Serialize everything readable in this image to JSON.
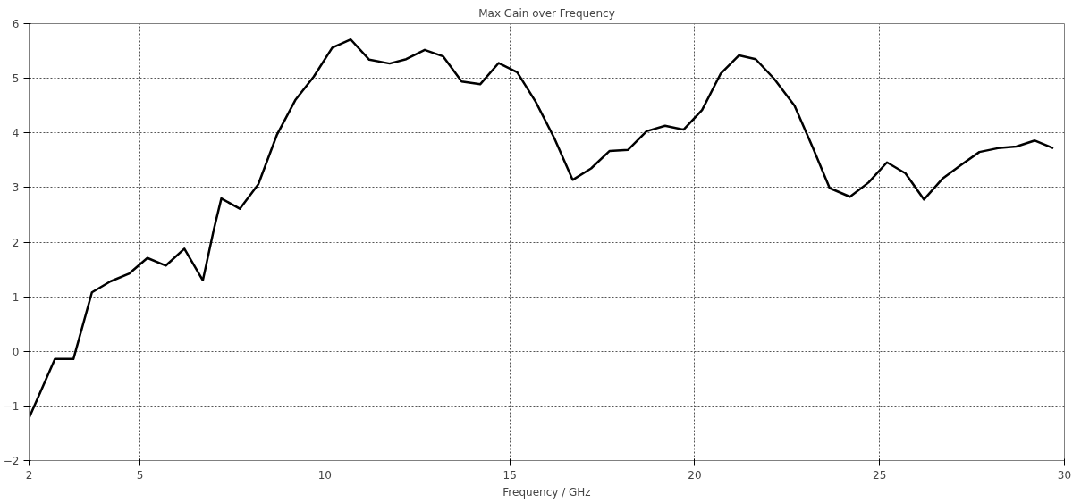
{
  "chart_data": {
    "type": "line",
    "title": "Max Gain over Frequency",
    "xlabel": "Frequency / GHz",
    "x": [
      2.0,
      2.7,
      3.2,
      3.7,
      4.2,
      4.7,
      5.2,
      5.7,
      6.2,
      6.7,
      7.0,
      7.2,
      7.7,
      8.2,
      8.7,
      9.2,
      9.7,
      10.2,
      10.7,
      11.2,
      11.75,
      12.2,
      12.7,
      13.2,
      13.7,
      14.2,
      14.7,
      15.2,
      15.7,
      16.2,
      16.7,
      17.2,
      17.7,
      18.2,
      18.7,
      19.2,
      19.7,
      20.2,
      20.7,
      21.2,
      21.65,
      22.15,
      22.7,
      23.2,
      23.65,
      24.2,
      24.7,
      25.2,
      25.7,
      26.2,
      26.7,
      27.2,
      27.7,
      28.2,
      28.7,
      29.2,
      29.7
    ],
    "series": [
      {
        "color": "#000000",
        "values": [
          -1.22,
          -0.14,
          -0.14,
          1.08,
          1.28,
          1.42,
          1.71,
          1.57,
          1.88,
          1.3,
          2.24,
          2.8,
          2.61,
          3.06,
          3.96,
          4.6,
          5.03,
          5.56,
          5.71,
          5.34,
          5.27,
          5.35,
          5.52,
          5.4,
          4.94,
          4.89,
          5.28,
          5.11,
          4.57,
          3.91,
          3.14,
          3.35,
          3.67,
          3.69,
          4.03,
          4.13,
          4.06,
          4.42,
          5.08,
          5.42,
          5.35,
          4.99,
          4.5,
          3.72,
          2.99,
          2.83,
          3.09,
          3.46,
          3.26,
          2.78,
          3.16,
          3.41,
          3.65,
          3.72,
          3.75,
          3.86,
          3.72
        ]
      }
    ],
    "xlim": [
      2,
      30
    ],
    "xticks": [
      2,
      5,
      10,
      15,
      20,
      25,
      30
    ],
    "ylim": [
      -2,
      6
    ],
    "yticks": [
      -2,
      -1,
      0,
      1,
      2,
      3,
      4,
      5,
      6
    ],
    "grid": true,
    "line_style": "solid",
    "marker": "none"
  }
}
